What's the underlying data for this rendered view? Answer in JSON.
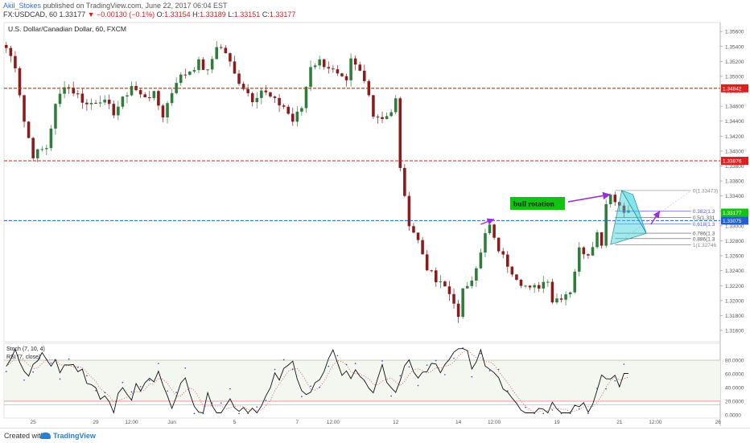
{
  "header": {
    "author": "Akil_Stokes",
    "published": "published on TradingView.com, June 22, 2017 06:04 EST",
    "symbol": "FX:USDCAD, 60",
    "last": "1.33177",
    "change": "▼ −0.00130 (−0.1%)",
    "o_label": "O:",
    "o_value": "1.33154",
    "h_label": "H:",
    "h_value": "1.33189",
    "l_label": "L:",
    "l_value": "1.33151",
    "c_label": "C:",
    "c_value": "1.33177"
  },
  "footer": {
    "created_with": "Created with",
    "brand": "TradingView"
  },
  "colors": {
    "up": "#2f7d3a",
    "down": "#8b1c1c",
    "red_level": "#e01e1e",
    "blue_level": "#1f5fd0",
    "annotation": "#9b2fd6",
    "pattern": "#34d0dc",
    "label_green": "#12c412"
  },
  "chart_data": [
    {
      "type": "candlestick",
      "title": "U.S. Dollar/Canadian Dollar, 60, FXCM",
      "ylim": [
        1.3145,
        1.3572
      ],
      "y_ticks": [
        "1.35600",
        "1.35400",
        "1.35200",
        "1.35000",
        "1.34800",
        "1.34600",
        "1.34400",
        "1.34200",
        "1.34000",
        "1.33800",
        "1.33600",
        "1.33400",
        "1.33200",
        "1.33000",
        "1.32800",
        "1.32600",
        "1.32400",
        "1.32200",
        "1.32000",
        "1.31800",
        "1.31600"
      ],
      "x_ticks": [
        "25",
        "29",
        "12:00",
        "Jun",
        "5",
        "7",
        "12:00",
        "12",
        "14",
        "12:00",
        "19",
        "21",
        "12:00",
        "26"
      ],
      "x_tick_bar": [
        6,
        20,
        28,
        37,
        51,
        65,
        73,
        87,
        101,
        109,
        123,
        137,
        145,
        159
      ],
      "price_path": [
        [
          0,
          1.3538
        ],
        [
          2,
          1.3515
        ],
        [
          4,
          1.344
        ],
        [
          6,
          1.3395
        ],
        [
          9,
          1.3405
        ],
        [
          11,
          1.346
        ],
        [
          13,
          1.349
        ],
        [
          16,
          1.3475
        ],
        [
          18,
          1.3462
        ],
        [
          21,
          1.347
        ],
        [
          24,
          1.3452
        ],
        [
          26,
          1.3468
        ],
        [
          28,
          1.3488
        ],
        [
          30,
          1.3474
        ],
        [
          33,
          1.3475
        ],
        [
          35,
          1.3448
        ],
        [
          38,
          1.3495
        ],
        [
          41,
          1.3508
        ],
        [
          43,
          1.3518
        ],
        [
          45,
          1.3505
        ],
        [
          47,
          1.3542
        ],
        [
          49,
          1.3532
        ],
        [
          51,
          1.3502
        ],
        [
          53,
          1.3486
        ],
        [
          55,
          1.347
        ],
        [
          57,
          1.3482
        ],
        [
          60,
          1.3466
        ],
        [
          62,
          1.346
        ],
        [
          64,
          1.344
        ],
        [
          66,
          1.3458
        ],
        [
          68,
          1.3515
        ],
        [
          70,
          1.352
        ],
        [
          72,
          1.3513
        ],
        [
          74,
          1.35
        ],
        [
          76,
          1.349
        ],
        [
          77,
          1.352
        ],
        [
          79,
          1.3506
        ],
        [
          81,
          1.348
        ],
        [
          82,
          1.3448
        ],
        [
          84,
          1.3446
        ],
        [
          86,
          1.345
        ],
        [
          87,
          1.3468
        ],
        [
          88,
          1.338
        ],
        [
          89,
          1.3335
        ],
        [
          90,
          1.3305
        ],
        [
          92,
          1.328
        ],
        [
          94,
          1.3245
        ],
        [
          96,
          1.3225
        ],
        [
          98,
          1.3218
        ],
        [
          100,
          1.32
        ],
        [
          101,
          1.3175
        ],
        [
          102,
          1.3212
        ],
        [
          104,
          1.3232
        ],
        [
          106,
          1.3262
        ],
        [
          107,
          1.3288
        ],
        [
          108,
          1.33
        ],
        [
          109,
          1.328
        ],
        [
          111,
          1.3258
        ],
        [
          113,
          1.324
        ],
        [
          115,
          1.3225
        ],
        [
          117,
          1.3214
        ],
        [
          119,
          1.322
        ],
        [
          121,
          1.323
        ],
        [
          122,
          1.32
        ],
        [
          124,
          1.3206
        ],
        [
          126,
          1.3214
        ],
        [
          128,
          1.3268
        ],
        [
          130,
          1.3264
        ],
        [
          132,
          1.329
        ],
        [
          133,
          1.3278
        ],
        [
          134,
          1.333
        ],
        [
          135,
          1.3346
        ],
        [
          136,
          1.3332
        ],
        [
          137,
          1.3328
        ],
        [
          139,
          1.3318
        ]
      ],
      "levels": [
        {
          "price": 1.3484,
          "color": "#e01e1e",
          "label": "1.34842",
          "style": "dashed"
        },
        {
          "price": 1.3387,
          "color": "#e01e1e",
          "label": "1.33876",
          "style": "dashed"
        },
        {
          "price": 1.3307,
          "color": "#1f5fd0",
          "label": "1.33075",
          "style": "dashed"
        }
      ],
      "last_price_label": "1.33177",
      "fibonacci": {
        "high": 1.33473,
        "low": 1.32746,
        "levels": [
          {
            "ratio": 0,
            "text": "0(1.33473)",
            "color": "#8a8a8a"
          },
          {
            "ratio": 0.382,
            "text": "0.382(1.3",
            "color": "#5a5ad8"
          },
          {
            "ratio": 0.5,
            "text": "0.5(1.331",
            "color": "#555555"
          },
          {
            "ratio": 0.618,
            "text": "0.618(1.3",
            "color": "#5a5ad8"
          },
          {
            "ratio": 0.786,
            "text": "0.786(1.3",
            "color": "#555555"
          },
          {
            "ratio": 0.886,
            "text": "0.886(1.3",
            "color": "#555555"
          },
          {
            "ratio": 1,
            "text": "1(1.32746",
            "color": "#8a8a8a"
          }
        ]
      },
      "annotation": {
        "text": "bull rotation"
      }
    },
    {
      "type": "line",
      "title": "Stoch (7, 10, 4)",
      "subtitle": "RSI (7, close)",
      "ylim": [
        0,
        100
      ],
      "y_ticks": [
        "80.0000",
        "60.0000",
        "40.0000",
        "20.0000",
        "0.0000"
      ],
      "bands": [
        80,
        20
      ]
    }
  ]
}
